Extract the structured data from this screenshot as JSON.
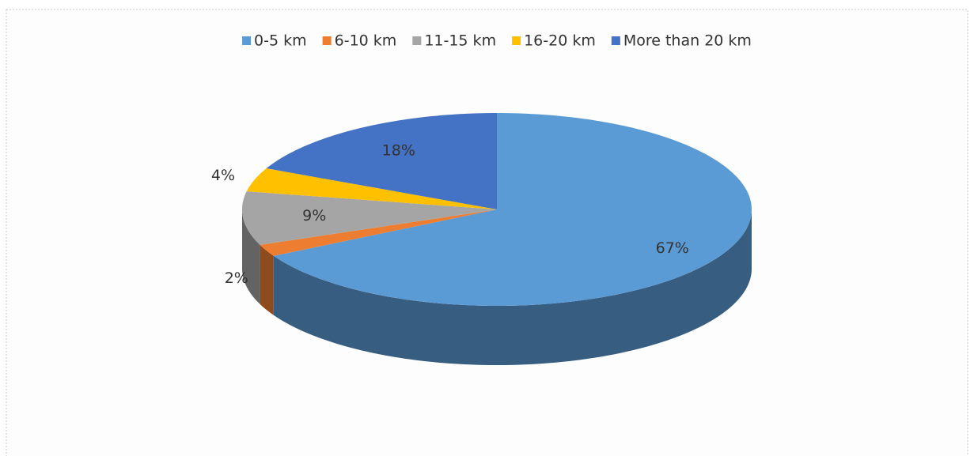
{
  "chart_data": {
    "type": "pie",
    "categories": [
      "0-5 km",
      "6-10 km",
      "11-15 km",
      "16-20 km",
      "More than 20 km"
    ],
    "values": [
      67,
      2,
      9,
      4,
      18
    ],
    "value_labels": [
      "67%",
      "2%",
      "9%",
      "4%",
      "18%"
    ],
    "colors": [
      "#5b9bd5",
      "#ed7d31",
      "#a5a5a5",
      "#ffc000",
      "#4472c4"
    ],
    "legend": "top"
  }
}
